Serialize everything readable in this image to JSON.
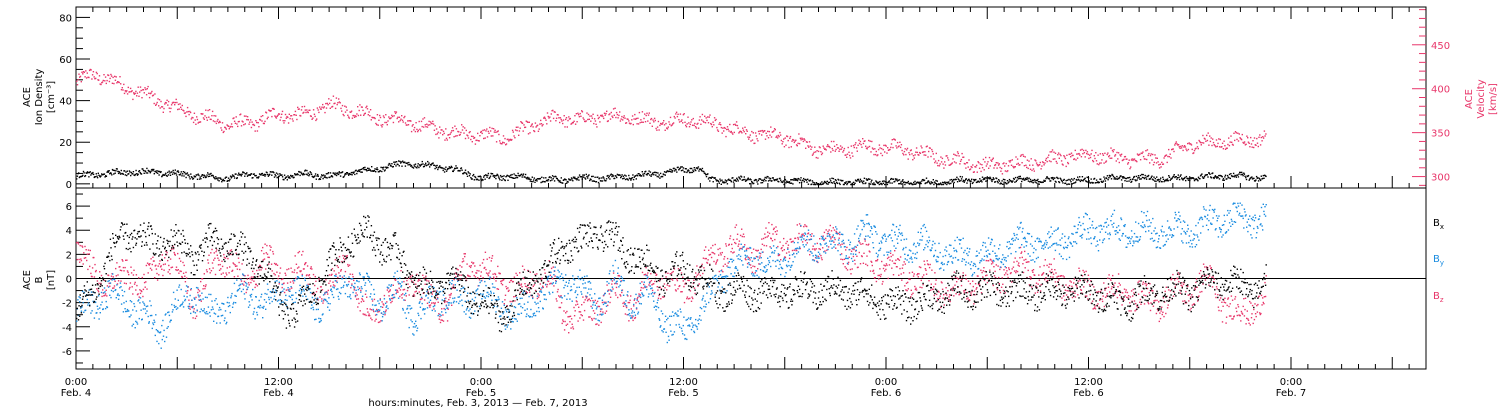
{
  "chart_data": [
    {
      "type": "scatter",
      "panel": "plasma",
      "ylabel_left": [
        "ACE",
        "Ion Density",
        "[cm⁻³]"
      ],
      "ylabel_right": [
        "ACE",
        "Velocity",
        "[km/s]"
      ],
      "left_ylim": [
        -2,
        85
      ],
      "left_ticks": [
        0,
        20,
        40,
        60,
        80
      ],
      "right_ylim": [
        287,
        493
      ],
      "right_ticks": [
        300,
        350,
        400,
        450
      ],
      "right_color": "#e8366a",
      "density_color": "#000000",
      "density_anchors": [
        [
          0,
          4
        ],
        [
          3,
          5
        ],
        [
          6,
          6
        ],
        [
          9,
          6
        ],
        [
          12,
          5
        ],
        [
          15,
          4
        ],
        [
          18,
          3
        ],
        [
          21,
          5
        ],
        [
          24,
          4
        ],
        [
          27,
          5
        ],
        [
          30,
          4
        ],
        [
          33,
          6
        ],
        [
          36,
          8
        ],
        [
          39,
          10
        ],
        [
          42,
          9
        ],
        [
          45,
          7
        ],
        [
          48,
          3
        ],
        [
          51,
          4
        ],
        [
          54,
          3
        ],
        [
          57,
          2
        ],
        [
          60,
          3
        ],
        [
          63,
          3
        ],
        [
          66,
          4
        ],
        [
          69,
          5
        ],
        [
          72,
          7
        ],
        [
          74,
          8
        ],
        [
          75,
          2
        ],
        [
          78,
          2
        ],
        [
          81,
          2
        ],
        [
          84,
          2
        ],
        [
          87,
          1
        ],
        [
          90,
          1
        ],
        [
          93,
          1
        ],
        [
          96,
          1
        ],
        [
          99,
          1
        ],
        [
          102,
          1
        ],
        [
          105,
          2
        ],
        [
          108,
          2
        ],
        [
          111,
          2
        ],
        [
          114,
          2
        ],
        [
          117,
          2
        ],
        [
          120,
          2
        ],
        [
          123,
          3
        ],
        [
          126,
          3
        ],
        [
          129,
          3
        ],
        [
          132,
          3
        ],
        [
          135,
          4
        ],
        [
          138,
          4
        ],
        [
          141,
          3
        ]
      ],
      "velocity_anchors": [
        [
          0,
          407
        ],
        [
          2,
          418
        ],
        [
          4,
          410
        ],
        [
          6,
          402
        ],
        [
          9,
          390
        ],
        [
          12,
          378
        ],
        [
          15,
          368
        ],
        [
          18,
          360
        ],
        [
          21,
          362
        ],
        [
          24,
          372
        ],
        [
          27,
          370
        ],
        [
          30,
          382
        ],
        [
          33,
          376
        ],
        [
          36,
          368
        ],
        [
          39,
          363
        ],
        [
          42,
          356
        ],
        [
          45,
          350
        ],
        [
          48,
          348
        ],
        [
          51,
          345
        ],
        [
          54,
          358
        ],
        [
          57,
          368
        ],
        [
          60,
          365
        ],
        [
          63,
          370
        ],
        [
          66,
          368
        ],
        [
          69,
          362
        ],
        [
          72,
          366
        ],
        [
          75,
          362
        ],
        [
          78,
          354
        ],
        [
          81,
          348
        ],
        [
          84,
          345
        ],
        [
          87,
          334
        ],
        [
          90,
          330
        ],
        [
          93,
          335
        ],
        [
          96,
          334
        ],
        [
          99,
          330
        ],
        [
          102,
          322
        ],
        [
          105,
          318
        ],
        [
          108,
          312
        ],
        [
          111,
          316
        ],
        [
          114,
          318
        ],
        [
          117,
          322
        ],
        [
          120,
          326
        ],
        [
          123,
          322
        ],
        [
          126,
          320
        ],
        [
          129,
          322
        ],
        [
          132,
          338
        ],
        [
          135,
          340
        ],
        [
          138,
          342
        ],
        [
          141,
          345
        ]
      ]
    },
    {
      "type": "scatter",
      "panel": "magnetic field",
      "ylabel": [
        "ACE",
        "B",
        "[nT]"
      ],
      "ylim": [
        -7.5,
        7.5
      ],
      "ticks": [
        -6,
        -4,
        -2,
        0,
        2,
        4,
        6
      ],
      "zero_line": true,
      "series": [
        {
          "name": "B",
          "sub": "x",
          "color": "#000000",
          "anchors": [
            [
              0,
              -3
            ],
            [
              2,
              -1
            ],
            [
              4,
              2
            ],
            [
              6,
              4
            ],
            [
              8,
              3
            ],
            [
              10,
              3
            ],
            [
              12,
              3
            ],
            [
              14,
              2
            ],
            [
              16,
              3
            ],
            [
              18,
              3
            ],
            [
              20,
              2
            ],
            [
              22,
              1
            ],
            [
              24,
              -2
            ],
            [
              26,
              -3
            ],
            [
              28,
              -1
            ],
            [
              30,
              1
            ],
            [
              32,
              3
            ],
            [
              34,
              4
            ],
            [
              36,
              3
            ],
            [
              38,
              2
            ],
            [
              40,
              0
            ],
            [
              42,
              -1
            ],
            [
              44,
              0
            ],
            [
              46,
              -1
            ],
            [
              48,
              -2
            ],
            [
              50,
              -3
            ],
            [
              52,
              -2
            ],
            [
              54,
              0
            ],
            [
              56,
              1
            ],
            [
              58,
              3
            ],
            [
              60,
              3
            ],
            [
              62,
              4
            ],
            [
              64,
              3
            ],
            [
              66,
              2
            ],
            [
              68,
              1
            ],
            [
              70,
              0
            ],
            [
              72,
              1
            ],
            [
              74,
              0
            ],
            [
              76,
              -1
            ],
            [
              78,
              -1
            ],
            [
              80,
              -1
            ],
            [
              84,
              -1
            ],
            [
              88,
              -1
            ],
            [
              92,
              -1
            ],
            [
              96,
              -2
            ],
            [
              100,
              -2
            ],
            [
              104,
              -1
            ],
            [
              108,
              -1
            ],
            [
              112,
              -1
            ],
            [
              116,
              -1
            ],
            [
              120,
              -1
            ],
            [
              124,
              -2
            ],
            [
              128,
              -1
            ],
            [
              132,
              -1
            ],
            [
              136,
              0
            ],
            [
              139,
              -1
            ],
            [
              141,
              0
            ]
          ]
        },
        {
          "name": "B",
          "sub": "y",
          "color": "#1a8ce0",
          "anchors": [
            [
              0,
              -3
            ],
            [
              2,
              -2
            ],
            [
              4,
              -1
            ],
            [
              6,
              -2
            ],
            [
              8,
              -3
            ],
            [
              10,
              -4
            ],
            [
              12,
              -2
            ],
            [
              14,
              -1
            ],
            [
              16,
              -3
            ],
            [
              18,
              -2
            ],
            [
              20,
              -1
            ],
            [
              22,
              -2
            ],
            [
              24,
              -1
            ],
            [
              26,
              -1
            ],
            [
              28,
              -2
            ],
            [
              30,
              -2
            ],
            [
              32,
              0
            ],
            [
              34,
              -1
            ],
            [
              36,
              -2
            ],
            [
              38,
              -1
            ],
            [
              40,
              -3
            ],
            [
              42,
              -2
            ],
            [
              44,
              -1
            ],
            [
              46,
              -2
            ],
            [
              48,
              -1
            ],
            [
              50,
              -2
            ],
            [
              52,
              -3
            ],
            [
              54,
              -2
            ],
            [
              56,
              -1
            ],
            [
              58,
              0
            ],
            [
              60,
              -1
            ],
            [
              62,
              -2
            ],
            [
              64,
              0
            ],
            [
              66,
              -2
            ],
            [
              68,
              -1
            ],
            [
              70,
              -4
            ],
            [
              72,
              -4
            ],
            [
              74,
              -3
            ],
            [
              76,
              0
            ],
            [
              78,
              1
            ],
            [
              80,
              2
            ],
            [
              82,
              1
            ],
            [
              84,
              2
            ],
            [
              86,
              3
            ],
            [
              88,
              3
            ],
            [
              90,
              3
            ],
            [
              92,
              3
            ],
            [
              94,
              4
            ],
            [
              96,
              3
            ],
            [
              100,
              3
            ],
            [
              104,
              2
            ],
            [
              108,
              2
            ],
            [
              112,
              3
            ],
            [
              116,
              3
            ],
            [
              120,
              4
            ],
            [
              124,
              4
            ],
            [
              128,
              4
            ],
            [
              132,
              4
            ],
            [
              136,
              5
            ],
            [
              139,
              5
            ],
            [
              141,
              5
            ]
          ]
        },
        {
          "name": "B",
          "sub": "z",
          "color": "#e8366a",
          "anchors": [
            [
              0,
              2
            ],
            [
              2,
              1
            ],
            [
              4,
              -1
            ],
            [
              6,
              1
            ],
            [
              8,
              -1
            ],
            [
              10,
              2
            ],
            [
              12,
              1
            ],
            [
              14,
              -2
            ],
            [
              16,
              1
            ],
            [
              18,
              2
            ],
            [
              20,
              -1
            ],
            [
              22,
              2
            ],
            [
              24,
              0
            ],
            [
              26,
              1
            ],
            [
              28,
              0
            ],
            [
              30,
              -1
            ],
            [
              32,
              2
            ],
            [
              34,
              -3
            ],
            [
              36,
              -2
            ],
            [
              38,
              -1
            ],
            [
              40,
              0
            ],
            [
              42,
              -2
            ],
            [
              44,
              -2
            ],
            [
              46,
              1
            ],
            [
              48,
              1
            ],
            [
              50,
              0
            ],
            [
              52,
              -1
            ],
            [
              54,
              0
            ],
            [
              56,
              0
            ],
            [
              58,
              -3
            ],
            [
              60,
              -3
            ],
            [
              62,
              -2
            ],
            [
              64,
              -1
            ],
            [
              66,
              -2
            ],
            [
              68,
              0
            ],
            [
              70,
              0
            ],
            [
              72,
              -1
            ],
            [
              74,
              1
            ],
            [
              76,
              2
            ],
            [
              78,
              3
            ],
            [
              80,
              2
            ],
            [
              82,
              3
            ],
            [
              84,
              3
            ],
            [
              86,
              3
            ],
            [
              88,
              3
            ],
            [
              90,
              3
            ],
            [
              92,
              2
            ],
            [
              96,
              1
            ],
            [
              100,
              0
            ],
            [
              104,
              -1
            ],
            [
              108,
              0
            ],
            [
              112,
              1
            ],
            [
              116,
              0
            ],
            [
              120,
              -1
            ],
            [
              124,
              -1
            ],
            [
              128,
              -2
            ],
            [
              130,
              -1
            ],
            [
              132,
              -1
            ],
            [
              134,
              0
            ],
            [
              136,
              -2
            ],
            [
              138,
              -3
            ],
            [
              140,
              -2
            ],
            [
              141,
              -1
            ]
          ]
        }
      ]
    }
  ],
  "x_axis": {
    "range_hours": [
      0,
      160
    ],
    "tick_labels": [
      {
        "hour": 0,
        "time": "0:00",
        "date": "Feb. 4"
      },
      {
        "hour": 24,
        "time": "12:00",
        "date": "Feb. 4"
      },
      {
        "hour": 48,
        "time": "0:00",
        "date": "Feb. 5"
      },
      {
        "hour": 72,
        "time": "12:00",
        "date": "Feb. 5"
      },
      {
        "hour": 96,
        "time": "0:00",
        "date": "Feb. 6"
      },
      {
        "hour": 120,
        "time": "12:00",
        "date": "Feb. 6"
      },
      {
        "hour": 144,
        "time": "0:00",
        "date": "Feb. 7"
      }
    ],
    "title": "hours:minutes, Feb.  3, 2013 — Feb.  7, 2013"
  }
}
